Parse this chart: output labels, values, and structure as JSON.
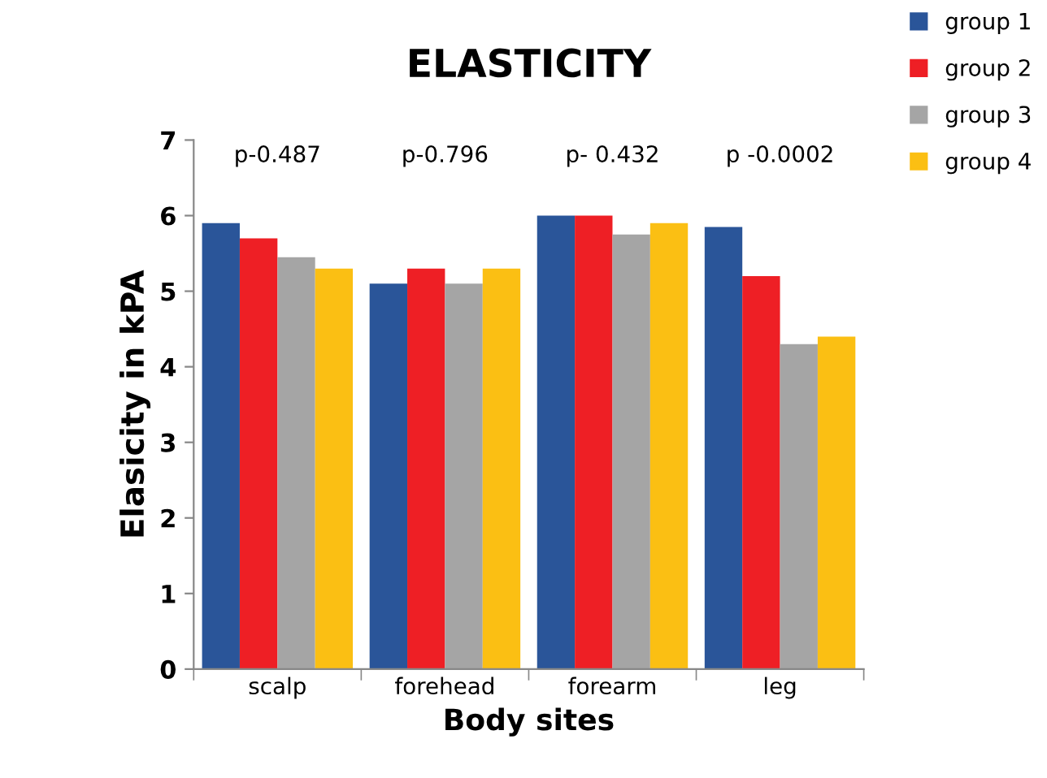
{
  "chart_data": {
    "type": "bar",
    "title": "ELASTICITY",
    "xlabel": "Body sites",
    "ylabel": "Elasicity in kPA",
    "categories": [
      "scalp",
      "forehead",
      "forearm",
      "leg"
    ],
    "series": [
      {
        "name": "group 1",
        "color": "#2a5599",
        "values": [
          5.9,
          5.1,
          6.0,
          5.85
        ]
      },
      {
        "name": "group 2",
        "color": "#ee1f25",
        "values": [
          5.7,
          5.3,
          6.0,
          5.2
        ]
      },
      {
        "name": "group 3",
        "color": "#a5a5a5",
        "values": [
          5.45,
          5.1,
          5.75,
          4.3
        ]
      },
      {
        "name": "group 4",
        "color": "#fbbf13",
        "values": [
          5.3,
          5.3,
          5.9,
          4.4
        ]
      }
    ],
    "annotations": [
      "p-0.487",
      "p-0.796",
      "p- 0.432",
      "p -0.0002"
    ],
    "ylim": [
      0,
      7
    ],
    "yticks": [
      0,
      1,
      2,
      3,
      4,
      5,
      6,
      7
    ],
    "grid": false,
    "legend": "right"
  }
}
